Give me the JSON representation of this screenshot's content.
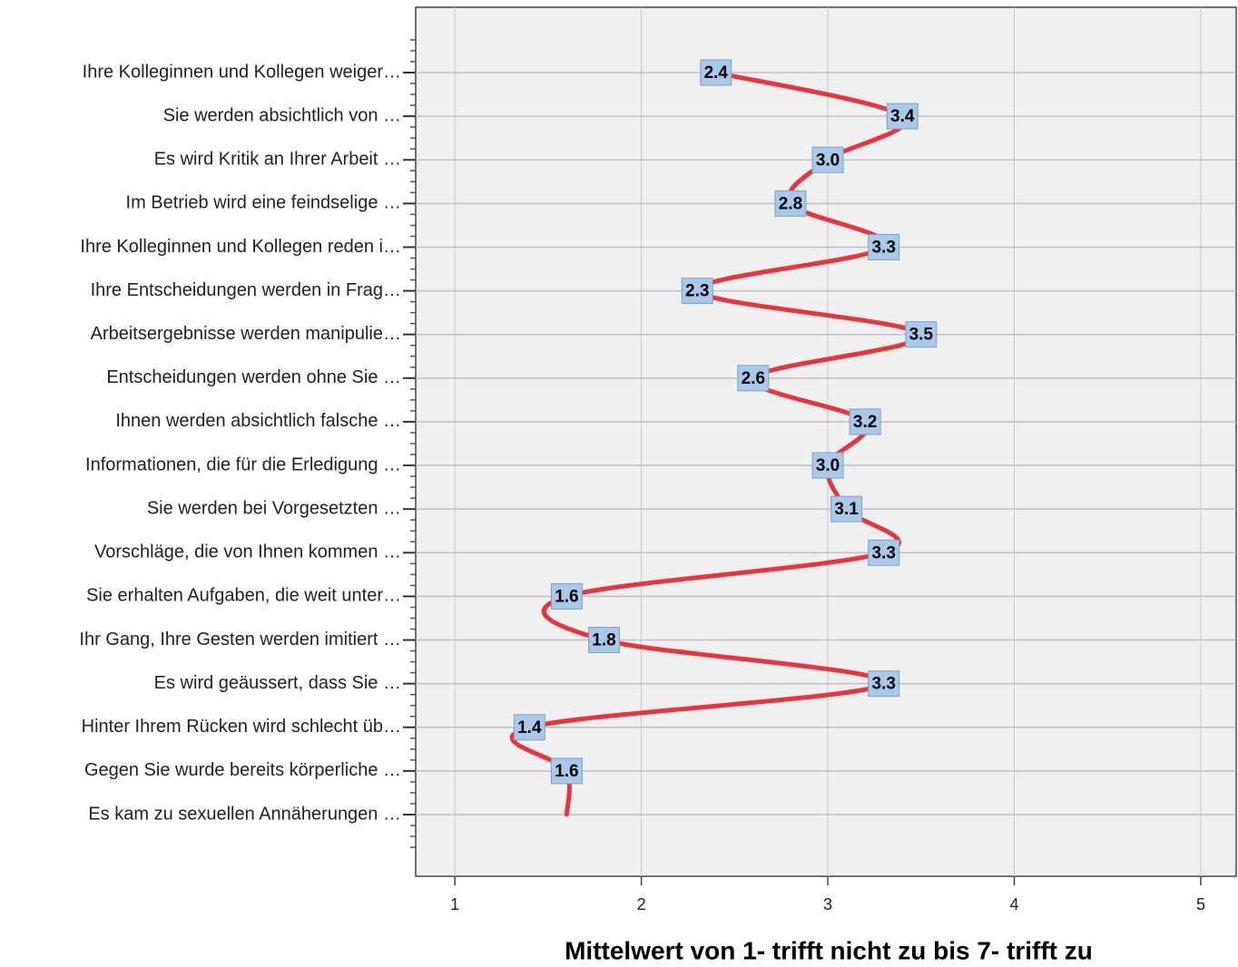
{
  "chart_data": {
    "type": "line",
    "orientation": "horizontal",
    "x_label": "Mittelwert von 1- trifft nicht zu bis 7- trifft zu",
    "categories": [
      "Ihre Kolleginnen und Kollegen weiger…",
      "Sie werden absichtlich von …",
      "Es wird Kritik an Ihrer Arbeit …",
      "Im Betrieb wird eine feindselige …",
      "Ihre Kolleginnen und Kollegen reden i…",
      "Ihre Entscheidungen werden in Frag…",
      "Arbeitsergebnisse werden manipulie…",
      "Entscheidungen werden ohne Sie …",
      "Ihnen werden absichtlich falsche …",
      "Informationen, die für die Erledigung …",
      "Sie werden bei Vorgesetzten …",
      "Vorschläge, die von Ihnen kommen …",
      "Sie erhalten Aufgaben, die weit unter…",
      "Ihr Gang, Ihre Gesten werden imitiert …",
      "Es wird geäussert, dass Sie …",
      "Hinter Ihrem Rücken wird schlecht üb…",
      "Gegen Sie wurde bereits körperliche …",
      "Es kam zu sexuellen Annäherungen …"
    ],
    "values": [
      2.4,
      3.4,
      3.0,
      2.8,
      3.3,
      2.3,
      3.5,
      2.6,
      3.2,
      3.0,
      3.1,
      3.3,
      1.6,
      1.8,
      3.3,
      1.4,
      1.6,
      1.6
    ],
    "value_labels": [
      "2.4",
      "3.4",
      "3.0",
      "2.8",
      "3.3",
      "2.3",
      "3.5",
      "2.6",
      "3.2",
      "3.0",
      "3.1",
      "3.3",
      "1.6",
      "1.8",
      "3.3",
      "1.4",
      "1.6",
      null
    ],
    "color": "#e8343c",
    "label_color": "#a9c9ea",
    "xlim": [
      0.79,
      5.19
    ],
    "xticks": [
      1,
      2,
      3,
      4,
      5
    ],
    "grid": true
  }
}
